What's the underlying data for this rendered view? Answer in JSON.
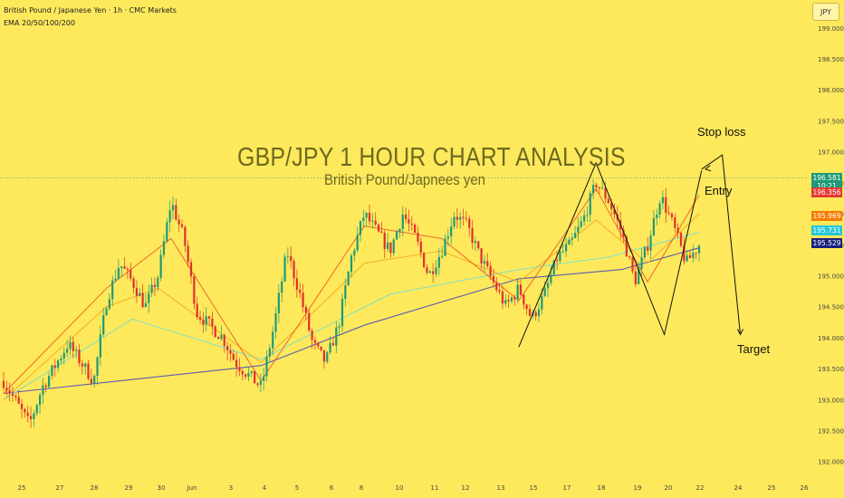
{
  "header": {
    "symbol_title": "British Pound / Japanese Yen · 1h · CMC Markets",
    "indicator": "EMA 20/50/100/200",
    "currency": "JPY"
  },
  "overlay": {
    "title": "GBP/JPY 1 HOUR CHART ANALYSIS",
    "subtitle": "British Pound/Japnees yen"
  },
  "annotations": {
    "stop_loss": "Stop loss",
    "entry": "Entry",
    "target": "Target"
  },
  "colors": {
    "background": "#fde95b",
    "up": "#1f9a78",
    "down": "#e03030",
    "ema20": "#f05a28",
    "ema50": "#f5a623",
    "ema100": "#7fe0c8",
    "ema200": "#5b5bb0",
    "pattern": "#111111"
  },
  "price_tags": [
    {
      "label": "196.581",
      "sub": "10:21",
      "value": 196.581,
      "color": "#1f9a78"
    },
    {
      "label": "196.356",
      "value": 196.356,
      "color": "#e53935"
    },
    {
      "label": "195.969",
      "value": 195.969,
      "color": "#f57c00"
    },
    {
      "label": "195.731",
      "value": 195.731,
      "color": "#26c6da"
    },
    {
      "label": "195.529",
      "value": 195.529,
      "color": "#1a237e"
    }
  ],
  "chart_data": {
    "type": "candlestick",
    "y_ticks": [
      192.0,
      192.5,
      193.0,
      193.5,
      194.0,
      194.5,
      195.0,
      195.5,
      196.0,
      196.5,
      197.0,
      197.5,
      198.0,
      198.5,
      199.0
    ],
    "ylim": [
      191.85,
      199.45
    ],
    "x_ticks": [
      "25",
      "27",
      "28",
      "29",
      "30",
      "Jun",
      "3",
      "4",
      "5",
      "6",
      "8",
      "10",
      "11",
      "12",
      "13",
      "15",
      "17",
      "18",
      "19",
      "20",
      "22",
      "24",
      "25",
      "26"
    ],
    "close_path": [
      [
        0,
        193.3
      ],
      [
        2,
        192.6
      ],
      [
        3,
        193.2
      ],
      [
        5,
        193.9
      ],
      [
        6,
        193.6
      ],
      [
        7,
        193.3
      ],
      [
        8,
        194.6
      ],
      [
        9,
        195.2
      ],
      [
        10,
        194.9
      ],
      [
        11,
        194.5
      ],
      [
        12,
        195.0
      ],
      [
        13,
        196.2
      ],
      [
        14,
        195.6
      ],
      [
        15,
        194.4
      ],
      [
        16,
        194.2
      ],
      [
        17,
        194.0
      ],
      [
        18,
        193.6
      ],
      [
        19,
        193.4
      ],
      [
        20,
        193.2
      ],
      [
        21,
        194.2
      ],
      [
        22,
        195.4
      ],
      [
        23,
        194.7
      ],
      [
        24,
        193.9
      ],
      [
        25,
        193.6
      ],
      [
        26,
        194.2
      ],
      [
        27,
        195.3
      ],
      [
        28,
        196.0
      ],
      [
        29,
        195.7
      ],
      [
        30,
        195.4
      ],
      [
        31,
        196.0
      ],
      [
        32,
        195.6
      ],
      [
        33,
        195.0
      ],
      [
        34,
        195.4
      ],
      [
        35,
        196.0
      ],
      [
        36,
        195.8
      ],
      [
        37,
        195.3
      ],
      [
        38,
        194.9
      ],
      [
        39,
        194.5
      ],
      [
        40,
        194.8
      ],
      [
        41,
        194.3
      ],
      [
        42,
        194.7
      ],
      [
        43,
        195.3
      ],
      [
        44,
        195.5
      ],
      [
        45,
        195.9
      ],
      [
        46,
        196.5
      ],
      [
        47,
        196.2
      ],
      [
        48,
        195.7
      ],
      [
        49,
        194.9
      ],
      [
        50,
        195.5
      ],
      [
        51,
        196.3
      ],
      [
        52,
        195.8
      ],
      [
        53,
        195.2
      ],
      [
        54,
        195.5
      ]
    ],
    "ema200": [
      [
        0,
        193.1
      ],
      [
        20,
        193.55
      ],
      [
        28,
        194.2
      ],
      [
        40,
        194.95
      ],
      [
        48,
        195.1
      ],
      [
        54,
        195.45
      ]
    ],
    "ema100": [
      [
        0,
        193.0
      ],
      [
        10,
        194.3
      ],
      [
        20,
        193.65
      ],
      [
        30,
        194.7
      ],
      [
        40,
        195.1
      ],
      [
        47,
        195.3
      ],
      [
        54,
        195.7
      ]
    ],
    "ema50": [
      [
        0,
        193.0
      ],
      [
        8,
        194.5
      ],
      [
        12,
        194.8
      ],
      [
        20,
        193.6
      ],
      [
        28,
        195.2
      ],
      [
        34,
        195.4
      ],
      [
        40,
        194.9
      ],
      [
        46,
        195.9
      ],
      [
        50,
        195.2
      ],
      [
        54,
        196.0
      ]
    ],
    "ema20": [
      [
        0,
        193.1
      ],
      [
        8,
        194.8
      ],
      [
        13,
        195.6
      ],
      [
        20,
        193.3
      ],
      [
        28,
        195.8
      ],
      [
        34,
        195.6
      ],
      [
        40,
        194.6
      ],
      [
        46,
        196.4
      ],
      [
        50,
        194.9
      ],
      [
        54,
        196.3
      ]
    ],
    "pattern_lines": [
      [
        [
          40.0,
          193.85
        ],
        [
          46.0,
          196.82
        ],
        [
          51.3,
          194.05
        ],
        [
          54.2,
          196.7
        ]
      ],
      [
        [
          54.2,
          196.72
        ],
        [
          55.8,
          196.95
        ],
        [
          57.2,
          194.05
        ]
      ]
    ]
  }
}
